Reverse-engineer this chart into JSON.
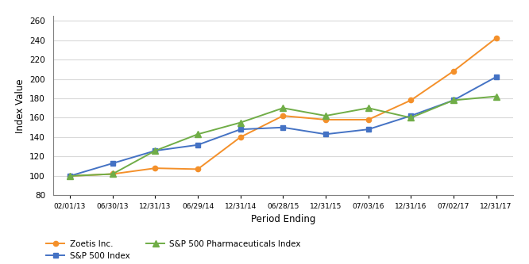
{
  "x_labels": [
    "02/01/13",
    "06/30/13",
    "12/31/13",
    "06/29/14",
    "12/31/14",
    "06/28/15",
    "12/31/15",
    "07/03/16",
    "12/31/16",
    "07/02/17",
    "12/31/17"
  ],
  "zoetis": [
    100,
    102,
    108,
    107,
    140,
    162,
    158,
    158,
    178,
    208,
    242
  ],
  "sp500": [
    100,
    113,
    126,
    132,
    148,
    150,
    143,
    148,
    162,
    178,
    202
  ],
  "pharma": [
    100,
    102,
    126,
    143,
    155,
    170,
    162,
    170,
    160,
    178,
    182
  ],
  "zoetis_color": "#F4902A",
  "sp500_color": "#4472C4",
  "pharma_color": "#70AD47",
  "ylabel": "Index Value",
  "xlabel": "Period Ending",
  "ylim_min": 80,
  "ylim_max": 265,
  "yticks": [
    80,
    100,
    120,
    140,
    160,
    180,
    200,
    220,
    240,
    260
  ],
  "legend_zoetis": "Zoetis Inc.",
  "legend_sp500": "S&P 500 Index",
  "legend_pharma": "S&P 500 Pharmaceuticals Index",
  "bg_color": "#FFFFFF",
  "grid_color": "#D9D9D9",
  "spine_color": "#7F7F7F"
}
